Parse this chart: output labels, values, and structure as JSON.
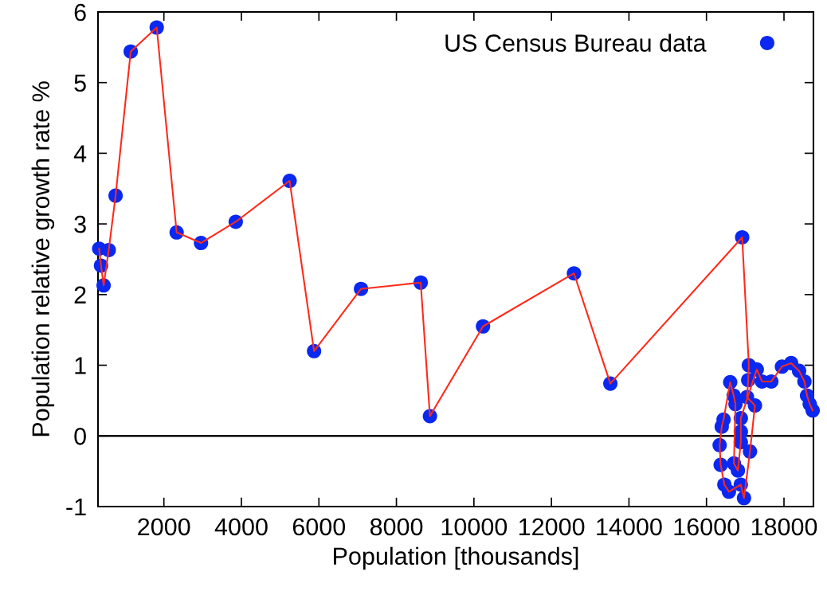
{
  "chart_data": {
    "type": "scatter",
    "xlabel": "Population [thousands]",
    "ylabel": "Population relative growth rate %",
    "xlim": [
      300,
      18760
    ],
    "ylim": [
      -1,
      6
    ],
    "xticks": [
      2000,
      4000,
      6000,
      8000,
      10000,
      12000,
      14000,
      16000,
      18000
    ],
    "yticks": [
      -1,
      0,
      1,
      2,
      3,
      4,
      5,
      6
    ],
    "grid": false,
    "legend": "top right",
    "marker": "circle",
    "ref_lines": [
      {
        "axis": "y",
        "value": 0,
        "color": "#000000"
      }
    ],
    "series": [
      {
        "type": "line",
        "color": "#ff2a1a",
        "marker": "none",
        "x": [
          330,
          378,
          445,
          577,
          754,
          1144,
          1815,
          2329,
          2958,
          3854,
          5244,
          5875,
          7086,
          8626,
          8865,
          10234,
          12581,
          13520,
          16921,
          17093,
          17078,
          17045,
          17251,
          17123,
          16968,
          16886,
          16579,
          16462,
          16366,
          16340,
          16394,
          16441,
          16612,
          16702,
          16749,
          16708,
          16811,
          16886,
          16886,
          16886,
          17298,
          17433,
          17673,
          17947,
          18185,
          18390,
          18528,
          18596,
          18665,
          18740
        ],
        "values": [
          2.65,
          2.41,
          2.13,
          2.63,
          3.4,
          5.44,
          5.78,
          2.88,
          2.73,
          3.03,
          3.61,
          1.2,
          2.08,
          2.17,
          0.28,
          1.55,
          2.3,
          0.74,
          2.81,
          1.0,
          0.79,
          0.55,
          0.43,
          -0.22,
          -0.88,
          -0.69,
          -0.79,
          -0.69,
          -0.41,
          -0.13,
          0.13,
          0.23,
          0.76,
          0.57,
          0.45,
          -0.39,
          -0.49,
          -0.09,
          0.06,
          0.25,
          0.94,
          0.77,
          0.77,
          0.98,
          1.03,
          0.92,
          0.77,
          0.57,
          0.45,
          0.36
        ]
      },
      {
        "name": "US Census Bureau data",
        "color": "#0a28f0",
        "x": [
          330,
          378,
          445,
          577,
          754,
          1144,
          1815,
          2329,
          2958,
          3854,
          5244,
          5875,
          7086,
          8626,
          8865,
          10234,
          12581,
          13520,
          16921,
          17093,
          17078,
          17045,
          17251,
          17123,
          16968,
          16886,
          16579,
          16462,
          16366,
          16340,
          16394,
          16441,
          16612,
          16702,
          16749,
          16708,
          16811,
          16886,
          16886,
          16886,
          17298,
          17433,
          17673,
          17947,
          18185,
          18390,
          18528,
          18596,
          18665,
          18740
        ],
        "values": [
          2.65,
          2.41,
          2.13,
          2.63,
          3.4,
          5.44,
          5.78,
          2.88,
          2.73,
          3.03,
          3.61,
          1.2,
          2.08,
          2.17,
          0.28,
          1.55,
          2.3,
          0.74,
          2.81,
          1.0,
          0.79,
          0.55,
          0.43,
          -0.22,
          -0.88,
          -0.69,
          -0.79,
          -0.69,
          -0.41,
          -0.13,
          0.13,
          0.23,
          0.76,
          0.57,
          0.45,
          -0.39,
          -0.49,
          -0.09,
          0.06,
          0.25,
          0.94,
          0.77,
          0.77,
          0.98,
          1.03,
          0.92,
          0.77,
          0.57,
          0.45,
          0.36
        ]
      }
    ]
  }
}
